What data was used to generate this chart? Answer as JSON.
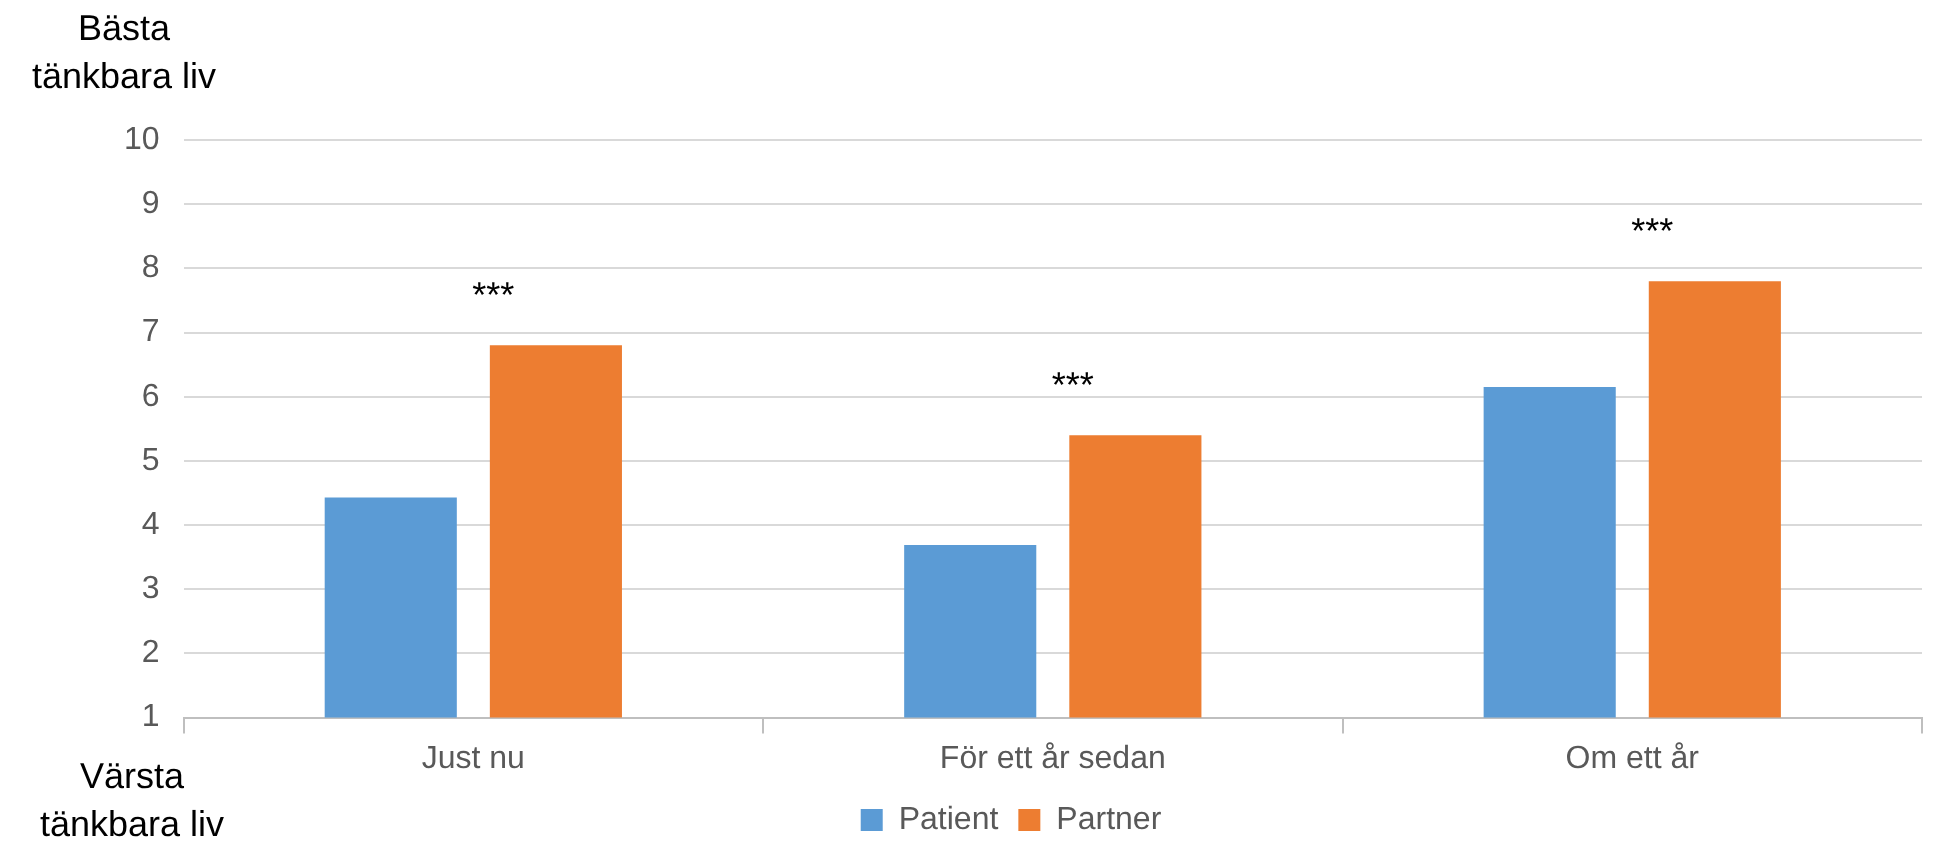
{
  "chart_data": {
    "type": "bar",
    "ylabel": "Bästa tänkbara liv",
    "categories": [
      "Just nu",
      "För ett år sedan",
      "Om ett år"
    ],
    "series": [
      {
        "name": "Patient",
        "color": "#5b9bd5",
        "values": [
          4.43,
          3.69,
          6.15
        ]
      },
      {
        "name": "Partner",
        "color": "#ed7d31",
        "values": [
          6.8,
          5.4,
          7.8
        ]
      }
    ],
    "ylim": [
      1,
      10
    ],
    "yticks": [
      1,
      2,
      3,
      4,
      5,
      6,
      7,
      8,
      9,
      10
    ],
    "grid": "y",
    "legend": "bottom",
    "annotations": [
      "***",
      "***",
      "***",
      "Värsta tänkbara liv"
    ]
  }
}
